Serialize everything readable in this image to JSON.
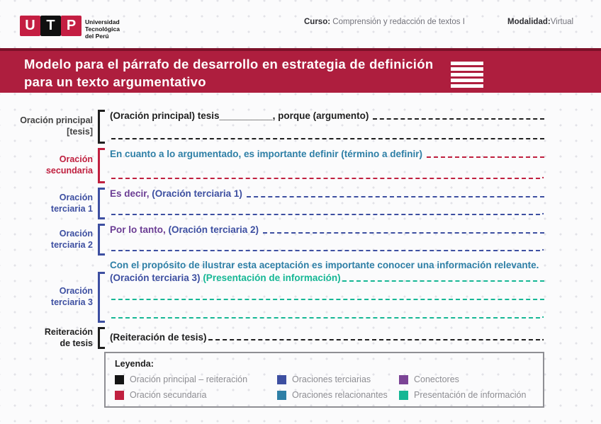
{
  "colors": {
    "banner_red": "#ae1e3e",
    "logo_red": "#c41e42",
    "logo_black": "#101010",
    "black": "#1f1f1f",
    "label_dark": "#424242",
    "red": "#c0203f",
    "blue": "#3d4fa1",
    "purple": "#6b3d94",
    "teal": "#2e7fa6",
    "green": "#16b795",
    "legend_text": "#8d8d92"
  },
  "header": {
    "logo_letters": [
      "U",
      "T",
      "P"
    ],
    "logo_name_lines": [
      "Universidad",
      "Tecnológica",
      "del Perú"
    ],
    "course_label": "Curso:",
    "course_value": "Comprensión y redacción de textos I",
    "modality_label": "Modalidad:",
    "modality_value": "Virtual"
  },
  "banner": {
    "title_line1": "Modelo para el párrafo de desarrollo en estrategia de definición",
    "title_line2": "para un texto argumentativo",
    "menu_icon": "hamburger-lines"
  },
  "sections": {
    "principal": {
      "label_line1": "Oración principal",
      "label_line2": "[tesis]",
      "line1_text": "(Oración principal) tesis__________, porque (argumento) "
    },
    "secundaria": {
      "label_line1": "Oración",
      "label_line2": "secundaria",
      "line1_text": "En cuanto a lo argumentado, es importante definir (término a definir) ",
      "line2_period": "."
    },
    "terciaria1": {
      "label_line1": "Oración",
      "label_line2": "terciaria 1",
      "connector": "Es decir,",
      "line1_text": " (Oración terciaria 1) ",
      "line2_period": "."
    },
    "terciaria2": {
      "label_line1": "Oración",
      "label_line2": "terciaria 2",
      "connector": "Por lo tanto,",
      "line1_text": " (Oración terciaria 2) ",
      "line2_period": "."
    },
    "relacionante": {
      "text": "Con el propósito de ilustrar esta aceptación es importante conocer una información relevante."
    },
    "terciaria3": {
      "label_line1": "Oración",
      "label_line2": "terciaria 3",
      "line1_text1": "(Oración terciaria 3) ",
      "line1_text2": "(Presentación de información)",
      "line3_period": "."
    },
    "reiteracion": {
      "label_line1": "Reiteración",
      "label_line2": "de tesis",
      "line_text": "(Reiteración de tesis)",
      "period": "."
    }
  },
  "legend": {
    "title": "Leyenda:",
    "items": [
      {
        "label": "Oración principal – reiteración",
        "color": "#141414"
      },
      {
        "label": "Oraciones terciarias",
        "color": "#3d4fa1"
      },
      {
        "label": "Conectores",
        "color": "#7c4496"
      },
      {
        "label": "Oración secundaria",
        "color": "#c0203f"
      },
      {
        "label": "Oraciones relacionantes",
        "color": "#2e7fa6"
      },
      {
        "label": "Presentación de información",
        "color": "#16b795"
      }
    ]
  }
}
